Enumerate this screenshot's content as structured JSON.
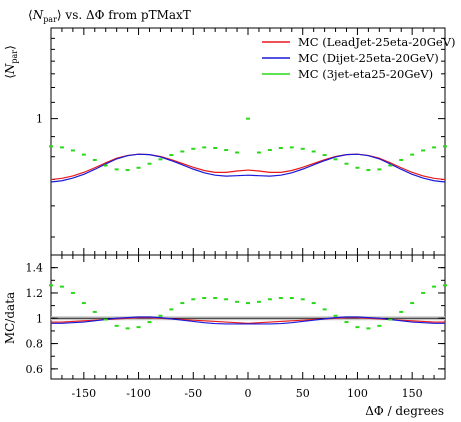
{
  "chart_data": {
    "type": "line",
    "title": "⟨N_par⟩ vs. ΔΦ from pTMaxT",
    "title_parts": {
      "open": "⟨",
      "symbol": "N",
      "subscript": "par",
      "close": "⟩",
      "rest": " vs. ΔΦ from pTMaxT"
    },
    "xlabel": "ΔΦ / degrees",
    "xlim": [
      -180,
      180
    ],
    "main_panel": {
      "ylabel": "⟨N_par⟩",
      "ylabel_parts": {
        "open": "⟨",
        "symbol": "N",
        "subscript": "par",
        "close": "⟩"
      },
      "yscale": "log",
      "ylim": [
        0.45,
        1.7
      ],
      "yticks": [
        1
      ],
      "ytick_labels": [
        "1"
      ]
    },
    "ratio_panel": {
      "ylabel": "MC/data",
      "ylim": [
        0.52,
        1.5
      ],
      "yticks": [
        0.6,
        0.8,
        1.0,
        1.2,
        1.4
      ],
      "ytick_labels": [
        "0.6",
        "0.8",
        "1",
        "1.2",
        "1.4"
      ],
      "reference_line": 1.0
    },
    "xticks": [
      -150,
      -100,
      -50,
      0,
      50,
      100,
      150
    ],
    "xtick_labels": [
      "-150",
      "-100",
      "-50",
      "0",
      "50",
      "100",
      "150"
    ],
    "legend_position": "top-right",
    "x": [
      -180,
      -170,
      -160,
      -150,
      -140,
      -130,
      -120,
      -110,
      -100,
      -90,
      -80,
      -70,
      -60,
      -50,
      -40,
      -30,
      -20,
      -10,
      0,
      10,
      20,
      30,
      40,
      50,
      60,
      70,
      80,
      90,
      100,
      110,
      120,
      130,
      140,
      150,
      160,
      170,
      180
    ],
    "series": [
      {
        "name": "MC (LeadJet-25eta-20GeV)",
        "color": "#e8191b",
        "style": "line",
        "values": [
          0.7,
          0.705,
          0.715,
          0.73,
          0.75,
          0.772,
          0.793,
          0.806,
          0.812,
          0.81,
          0.801,
          0.786,
          0.769,
          0.752,
          0.738,
          0.73,
          0.73,
          0.736,
          0.74,
          0.736,
          0.73,
          0.73,
          0.738,
          0.752,
          0.769,
          0.786,
          0.801,
          0.81,
          0.812,
          0.806,
          0.793,
          0.772,
          0.75,
          0.73,
          0.715,
          0.705,
          0.7
        ],
        "ratio": [
          0.97,
          0.97,
          0.975,
          0.98,
          0.985,
          0.99,
          0.995,
          1.0,
          1.005,
          1.005,
          1.0,
          0.995,
          0.99,
          0.985,
          0.98,
          0.975,
          0.97,
          0.965,
          0.96,
          0.965,
          0.97,
          0.975,
          0.98,
          0.985,
          0.99,
          0.995,
          1.0,
          1.005,
          1.005,
          1.0,
          0.995,
          0.99,
          0.985,
          0.98,
          0.975,
          0.97,
          0.97
        ]
      },
      {
        "name": "MC (Dijet-25eta-20GeV)",
        "color": "#1a1ad8",
        "style": "line",
        "values": [
          0.69,
          0.695,
          0.706,
          0.722,
          0.743,
          0.767,
          0.79,
          0.805,
          0.812,
          0.81,
          0.799,
          0.782,
          0.763,
          0.744,
          0.728,
          0.718,
          0.714,
          0.716,
          0.718,
          0.716,
          0.714,
          0.718,
          0.728,
          0.744,
          0.763,
          0.782,
          0.799,
          0.81,
          0.812,
          0.805,
          0.79,
          0.767,
          0.743,
          0.722,
          0.706,
          0.695,
          0.69
        ],
        "ratio": [
          0.96,
          0.96,
          0.965,
          0.97,
          0.98,
          0.99,
          1.0,
          1.005,
          1.01,
          1.01,
          1.005,
          0.995,
          0.985,
          0.975,
          0.965,
          0.958,
          0.955,
          0.955,
          0.955,
          0.955,
          0.955,
          0.958,
          0.965,
          0.975,
          0.985,
          0.995,
          1.005,
          1.01,
          1.01,
          1.005,
          1.0,
          0.99,
          0.98,
          0.97,
          0.965,
          0.96,
          0.96
        ]
      },
      {
        "name": "MC (3jet-eta25-20GeV)",
        "color": "#2ad81a",
        "style": "markers",
        "values": [
          0.85,
          0.845,
          0.83,
          0.81,
          0.785,
          0.76,
          0.743,
          0.74,
          0.75,
          0.768,
          0.788,
          0.808,
          0.825,
          0.838,
          0.845,
          0.842,
          0.832,
          0.82,
          1.0,
          0.82,
          0.832,
          0.842,
          0.845,
          0.838,
          0.825,
          0.808,
          0.788,
          0.768,
          0.75,
          0.74,
          0.743,
          0.76,
          0.785,
          0.81,
          0.83,
          0.845,
          0.85
        ],
        "ratio": [
          1.26,
          1.25,
          1.2,
          1.12,
          1.05,
          0.99,
          0.94,
          0.92,
          0.93,
          0.97,
          1.02,
          1.07,
          1.12,
          1.15,
          1.16,
          1.16,
          1.15,
          1.13,
          1.12,
          1.13,
          1.15,
          1.16,
          1.16,
          1.15,
          1.12,
          1.07,
          1.02,
          0.97,
          0.93,
          0.92,
          0.94,
          0.99,
          1.05,
          1.12,
          1.2,
          1.25,
          1.26
        ]
      }
    ]
  }
}
